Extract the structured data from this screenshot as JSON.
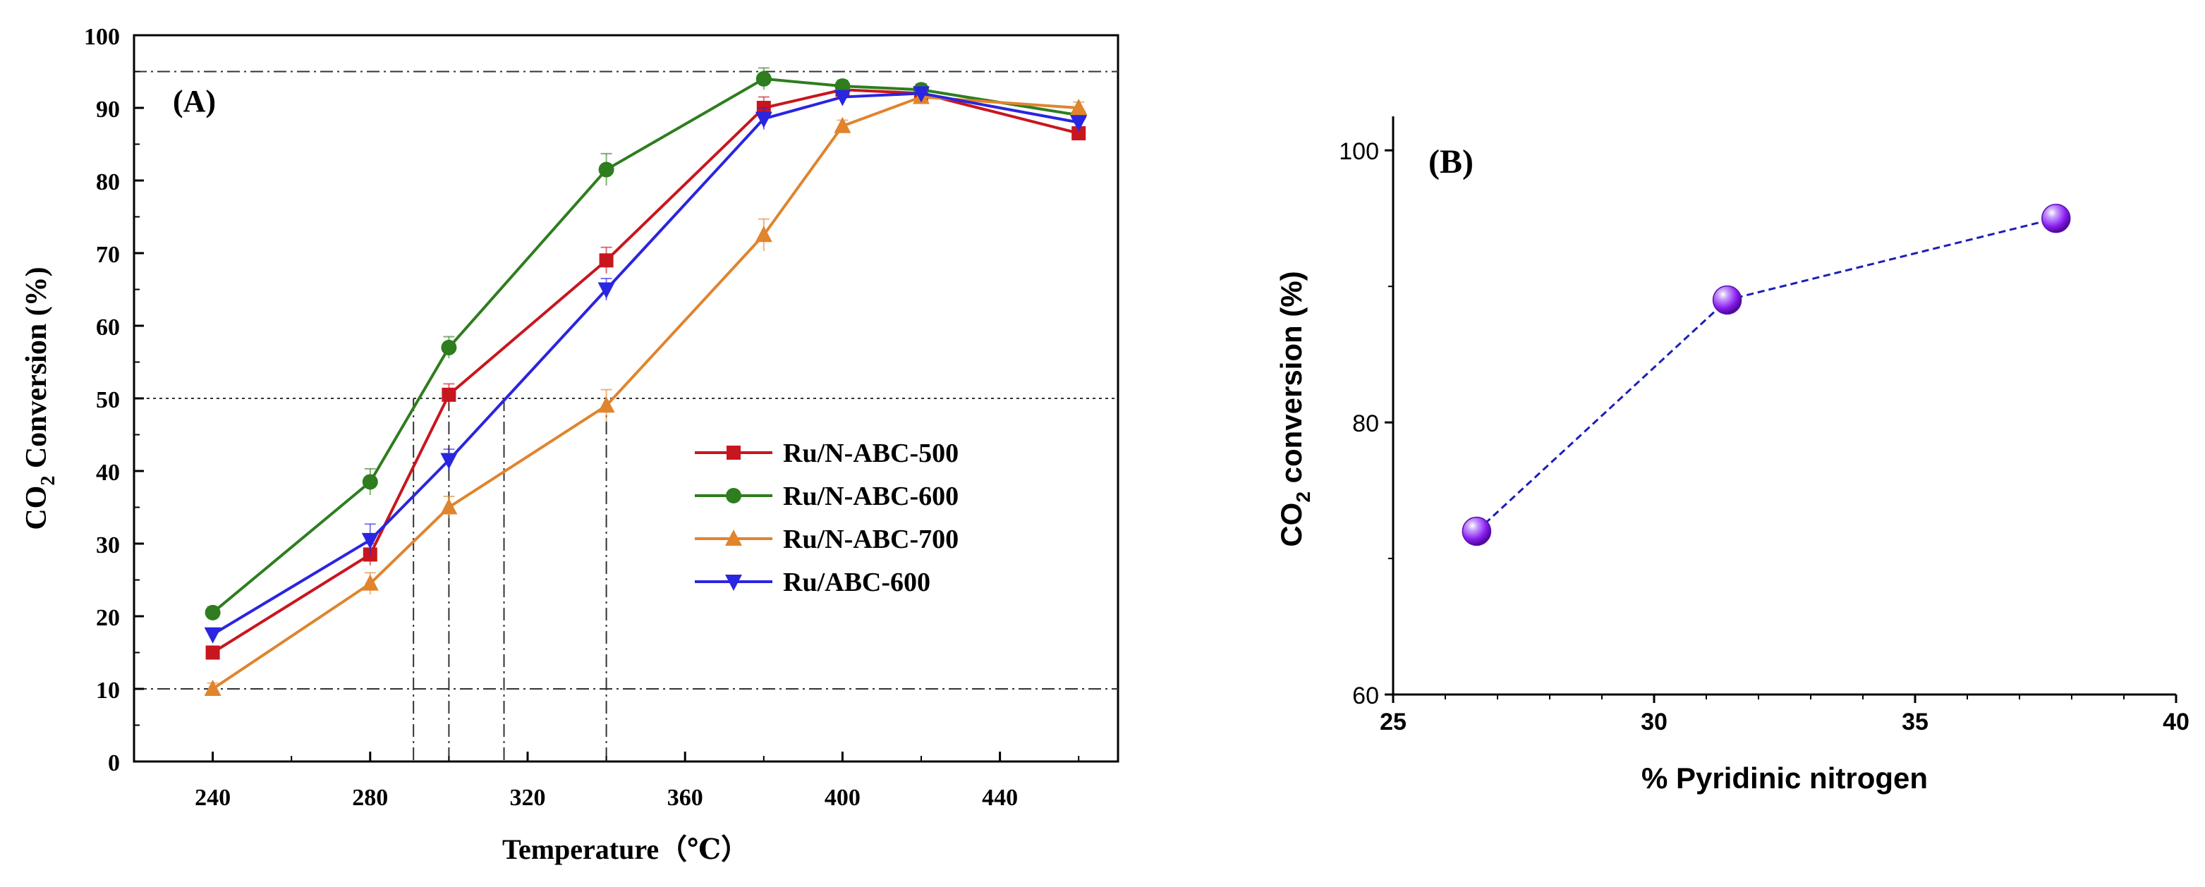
{
  "chart_data": [
    {
      "type": "line",
      "panel_label": "(A)",
      "xlabel": "Temperature（℃）",
      "ylabel_main": "CO",
      "ylabel_sub": "2",
      "ylabel_rest": " Conversion (%)",
      "xlim": [
        220,
        470
      ],
      "ylim": [
        0,
        100
      ],
      "xticks": [
        "240",
        "280",
        "320",
        "360",
        "400",
        "440"
      ],
      "yticks": [
        "0",
        "10",
        "20",
        "30",
        "40",
        "50",
        "60",
        "70",
        "80",
        "90",
        "100"
      ],
      "reference_lines_y": [
        10,
        50,
        95
      ],
      "reference_lines_x": [
        291,
        300,
        314,
        340
      ],
      "series": [
        {
          "name": "Ru/N-ABC-500",
          "color": "#c8161e",
          "marker": "square",
          "x": [
            240,
            280,
            300,
            340,
            380,
            400,
            420,
            460
          ],
          "y": [
            15,
            28.5,
            50.5,
            69,
            90,
            92.5,
            92,
            86.5
          ],
          "err": [
            0.8,
            1.5,
            1.5,
            1.8,
            1.5,
            0.8,
            0.8,
            0.8
          ]
        },
        {
          "name": "Ru/N-ABC-600",
          "color": "#2e7d1e",
          "marker": "circle",
          "x": [
            240,
            280,
            300,
            340,
            380,
            400,
            420,
            460
          ],
          "y": [
            20.5,
            38.5,
            57,
            81.5,
            94,
            93,
            92.5,
            89
          ],
          "err": [
            0.8,
            1.8,
            1.5,
            2.2,
            1.5,
            0.8,
            0.8,
            0.8
          ]
        },
        {
          "name": "Ru/N-ABC-700",
          "color": "#e0842e",
          "marker": "triangle-up",
          "x": [
            240,
            280,
            300,
            340,
            380,
            400,
            420,
            460
          ],
          "y": [
            10,
            24.5,
            35,
            49,
            72.5,
            87.5,
            91.5,
            90
          ],
          "err": [
            0.8,
            1.5,
            1.5,
            2.2,
            2.2,
            0.8,
            0.8,
            0.8
          ]
        },
        {
          "name": "Ru/ABC-600",
          "color": "#2a25e0",
          "marker": "triangle-down",
          "x": [
            240,
            280,
            300,
            340,
            380,
            400,
            420,
            460
          ],
          "y": [
            17.5,
            30.5,
            41.5,
            65,
            88.5,
            91.5,
            92,
            88
          ],
          "err": [
            0.8,
            2.2,
            1.5,
            1.5,
            1.5,
            0.8,
            0.8,
            0.8
          ]
        }
      ]
    },
    {
      "type": "scatter",
      "panel_label": "(B)",
      "xlabel": "% Pyridinic nitrogen",
      "ylabel_main": "CO",
      "ylabel_sub": "2",
      "ylabel_rest": " conversion (%)",
      "xlim": [
        25,
        40
      ],
      "ylim": [
        60,
        102.5
      ],
      "xticks": [
        "25",
        "30",
        "35",
        "40"
      ],
      "yticks": [
        "60",
        "80",
        "100"
      ],
      "series": [
        {
          "name": "CO2 conversion",
          "color": "#8a1cf0",
          "line_color": "#1a1fb8",
          "x": [
            26.6,
            31.4,
            37.7
          ],
          "y": [
            72,
            89,
            95
          ]
        }
      ]
    }
  ]
}
